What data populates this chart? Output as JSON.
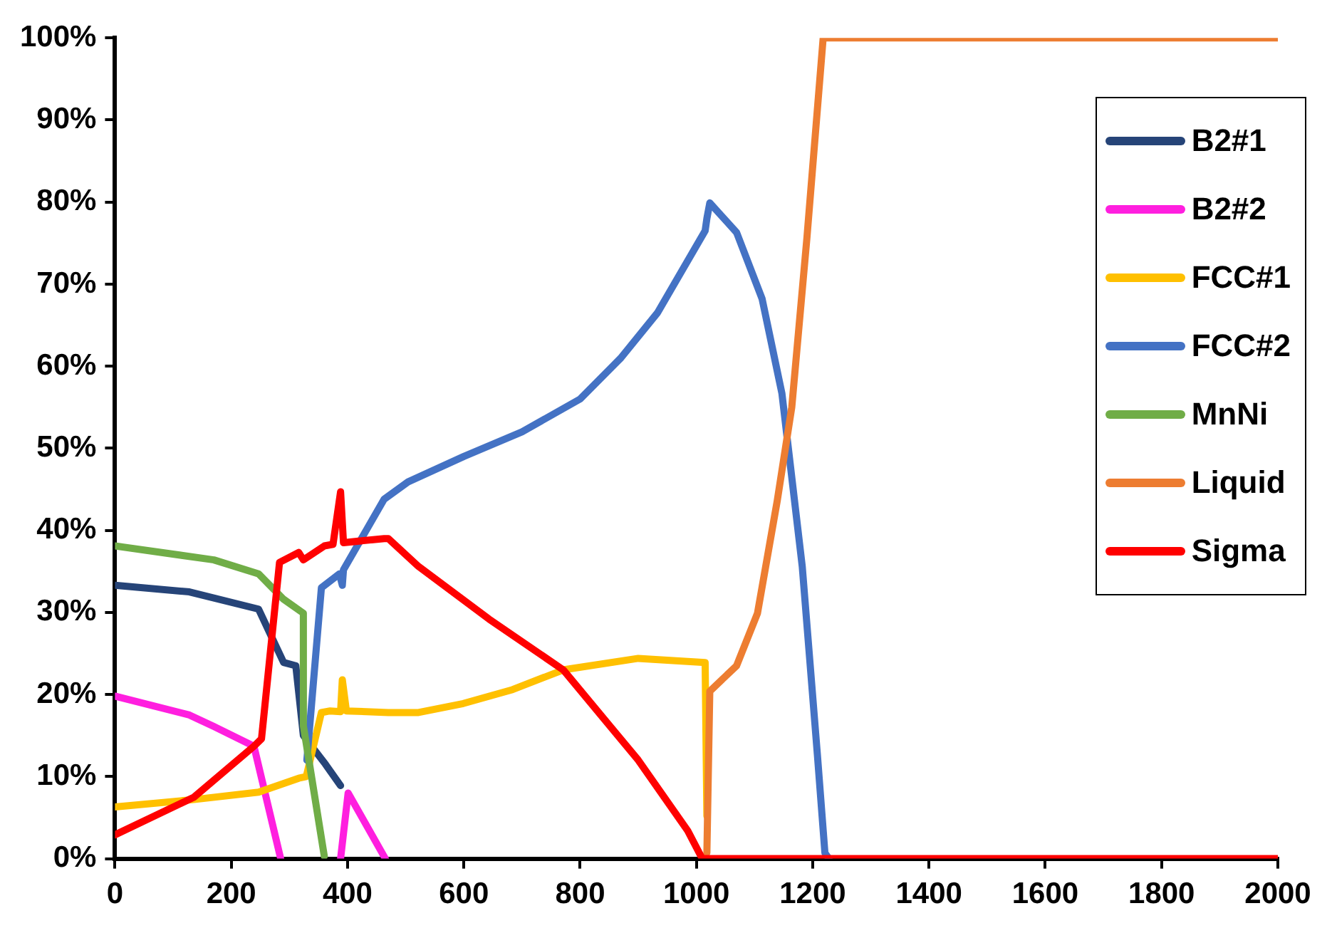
{
  "chart_data": {
    "type": "line",
    "xlim": [
      0,
      2000
    ],
    "xticks": [
      0,
      200,
      400,
      600,
      800,
      1000,
      1200,
      1400,
      1600,
      1800,
      2000
    ],
    "ylim": [
      0,
      100
    ],
    "yticks": [
      {
        "value": 0,
        "label": "0%"
      },
      {
        "value": 10,
        "label": "10%"
      },
      {
        "value": 20,
        "label": "20%"
      },
      {
        "value": 30,
        "label": "30%"
      },
      {
        "value": 40,
        "label": "40%"
      },
      {
        "value": 50,
        "label": "50%"
      },
      {
        "value": 60,
        "label": "60%"
      },
      {
        "value": 70,
        "label": "70%"
      },
      {
        "value": 80,
        "label": "80%"
      },
      {
        "value": 90,
        "label": "90%"
      },
      {
        "value": 100,
        "label": "100%"
      }
    ],
    "grid": false,
    "legend": "top right",
    "marker": "none",
    "line_style": "solid",
    "series": [
      {
        "name": "B2#1",
        "color": "#264478",
        "x": [
          0,
          128,
          247,
          290,
          311,
          324,
          362,
          388
        ],
        "values": [
          33.3,
          32.5,
          30.4,
          23.9,
          23.5,
          15,
          11.5,
          8.9
        ]
      },
      {
        "name": "B2#2",
        "color": "#ff1fdf",
        "x": [
          0,
          128,
          170,
          239,
          285,
          336,
          388,
          401,
          465
        ],
        "values": [
          19.8,
          17.5,
          16.1,
          13.7,
          0,
          null,
          0,
          8,
          0
        ]
      },
      {
        "name": "FCC#1",
        "color": "#ffc000",
        "x": [
          0,
          136,
          247,
          316,
          329,
          355,
          370,
          388,
          391,
          398,
          470,
          522,
          599,
          684,
          771,
          900,
          1015,
          1018
        ],
        "values": [
          6.3,
          7.2,
          8.1,
          9.8,
          10,
          17.8,
          18,
          17.9,
          21.8,
          18,
          17.8,
          17.8,
          18.9,
          20.6,
          23,
          24.4,
          23.9,
          5.2
        ]
      },
      {
        "name": "FCC#2",
        "color": "#4472c4",
        "x": [
          330,
          355,
          386,
          391,
          393,
          463,
          504,
          600,
          700,
          800,
          870,
          933,
          1015,
          1018,
          1023,
          1069,
          1113,
          1147,
          1182,
          1208,
          1221,
          1228
        ],
        "values": [
          12,
          33,
          34.7,
          33.3,
          35.2,
          43.8,
          45.9,
          49,
          52,
          56,
          61,
          66.5,
          76.5,
          78,
          79.9,
          76.3,
          68.2,
          56.7,
          35.6,
          12.7,
          0.7,
          0
        ]
      },
      {
        "name": "MnNi",
        "color": "#70ad47",
        "x": [
          0,
          170,
          247,
          290,
          324,
          324,
          360
        ],
        "values": [
          38.1,
          36.4,
          34.7,
          31.6,
          29.9,
          16.2,
          0.3
        ]
      },
      {
        "name": "Liquid",
        "color": "#ed7d31",
        "x": [
          1018,
          1023,
          1069,
          1105,
          1139,
          1164,
          1190,
          1218,
          2000
        ],
        "values": [
          0.7,
          20.4,
          23.5,
          29.9,
          43.6,
          55,
          75.6,
          100,
          100
        ]
      },
      {
        "name": "Sigma",
        "color": "#ff0000",
        "x": [
          0,
          136,
          239,
          252,
          283,
          316,
          324,
          360,
          375,
          388,
          393,
          463,
          470,
          522,
          643,
          771,
          900,
          985,
          1010,
          2000
        ],
        "values": [
          2.9,
          7.5,
          13.7,
          14.6,
          36.1,
          37.3,
          36.4,
          38.1,
          38.3,
          44.7,
          38.5,
          39,
          39,
          35.6,
          29.2,
          23,
          12,
          3.4,
          0,
          0
        ]
      }
    ]
  }
}
